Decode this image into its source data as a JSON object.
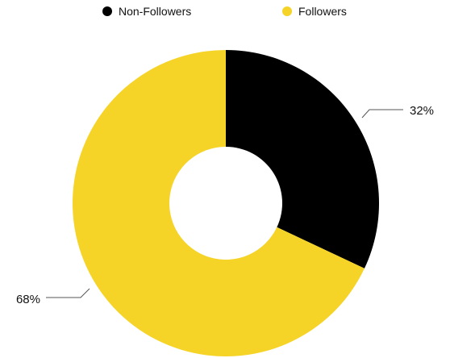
{
  "chart_data": {
    "type": "pie",
    "title": "",
    "legend_position": "top",
    "donut": true,
    "categories": [
      "Non-Followers",
      "Followers"
    ],
    "values": [
      32,
      68
    ],
    "labels": [
      "32%",
      "68%"
    ],
    "colors": [
      "#000000",
      "#f5d327"
    ]
  }
}
